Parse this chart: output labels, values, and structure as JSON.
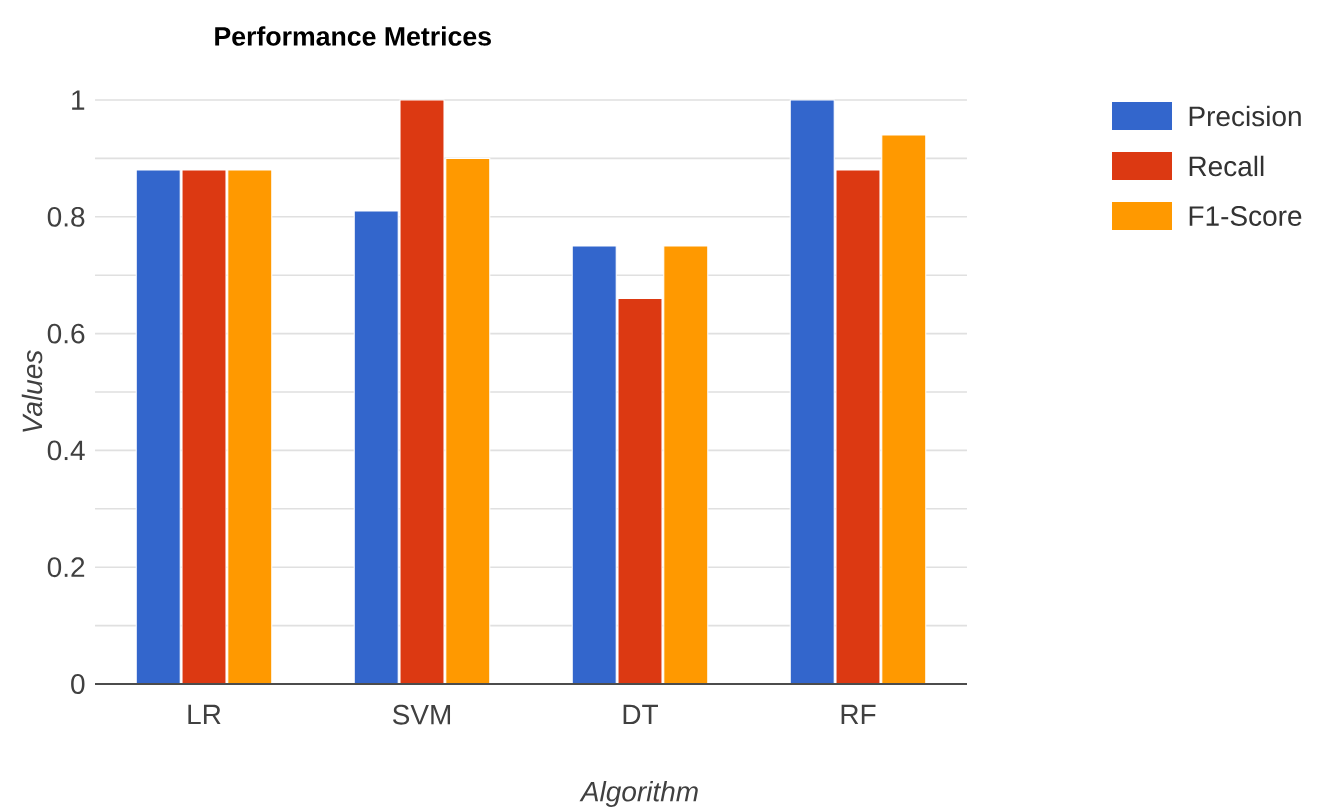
{
  "chart_data": {
    "type": "bar",
    "title": "Performance Metrices",
    "xlabel": "Algorithm",
    "ylabel": "Values",
    "categories": [
      "LR",
      "SVM",
      "DT",
      "RF"
    ],
    "series": [
      {
        "name": "Precision",
        "color": "#3366cc",
        "values": [
          0.88,
          0.81,
          0.75,
          1.0
        ]
      },
      {
        "name": "Recall",
        "color": "#dc3912",
        "values": [
          0.88,
          1.0,
          0.66,
          0.88
        ]
      },
      {
        "name": "F1-Score",
        "color": "#ff9900",
        "values": [
          0.88,
          0.9,
          0.75,
          0.94
        ]
      }
    ],
    "ylim": [
      0,
      1
    ],
    "yticks": [
      0,
      {
        "value": 0.1,
        "label": null
      },
      0.2,
      {
        "value": 0.3,
        "label": null
      },
      0.4,
      {
        "value": 0.5,
        "label": null
      },
      0.6,
      {
        "value": 0.7,
        "label": null
      },
      0.8,
      {
        "value": 0.9,
        "label": null
      },
      1
    ],
    "grid": "y",
    "legend": "top right"
  }
}
